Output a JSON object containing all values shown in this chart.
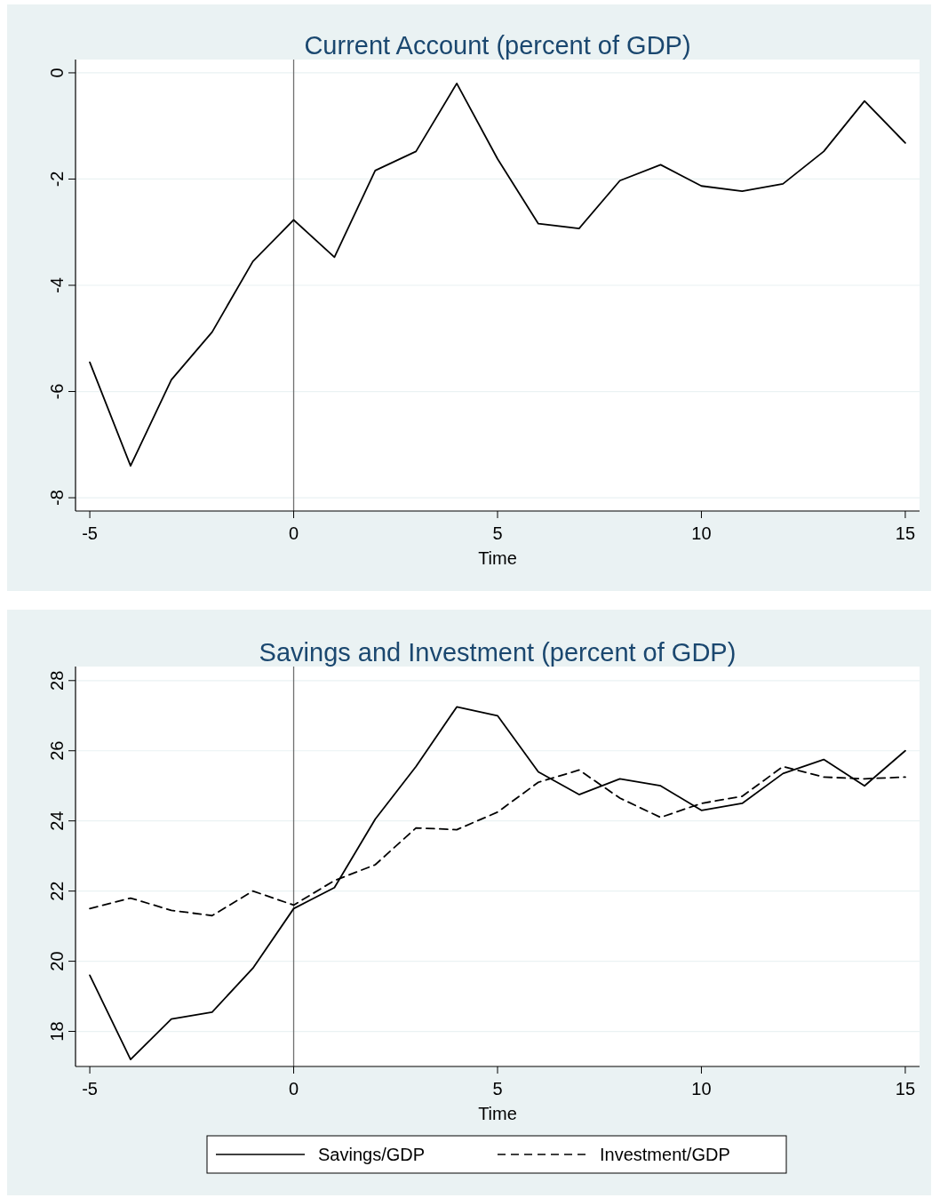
{
  "chart_data": [
    {
      "type": "line",
      "title": "Current Account (percent of GDP)",
      "xlabel": "Time",
      "x": [
        -5,
        -4,
        -3,
        -2,
        -1,
        0,
        1,
        2,
        3,
        4,
        5,
        6,
        7,
        8,
        9,
        10,
        11,
        12,
        13,
        14,
        15
      ],
      "series": [
        {
          "color": "#000000",
          "line_style": "solid",
          "values": [
            -5.45,
            -7.4,
            -5.78,
            -4.88,
            -3.55,
            -2.77,
            -3.47,
            -1.84,
            -1.48,
            -0.2,
            -1.62,
            -2.84,
            -2.93,
            -2.03,
            -1.73,
            -2.13,
            -2.23,
            -2.09,
            -1.48,
            -0.53,
            -1.32
          ]
        }
      ],
      "xlim": [
        -5.35,
        15.35
      ],
      "xticks": [
        -5,
        0,
        5,
        10,
        15
      ],
      "ylim": [
        -8.25,
        0.25
      ],
      "yticks": [
        -8,
        -6,
        -4,
        -2,
        0
      ],
      "grid": "y",
      "marker": "none",
      "ref_lines": [
        {
          "axis": "x",
          "value": 0,
          "color": "#707070"
        }
      ]
    },
    {
      "type": "line",
      "title": "Savings and Investment (percent of GDP)",
      "xlabel": "Time",
      "x": [
        -5,
        -4,
        -3,
        -2,
        -1,
        0,
        1,
        2,
        3,
        4,
        5,
        6,
        7,
        8,
        9,
        10,
        11,
        12,
        13,
        14,
        15
      ],
      "series": [
        {
          "name": "Savings/GDP",
          "color": "#000000",
          "line_style": "solid",
          "values": [
            19.6,
            17.2,
            18.35,
            18.55,
            19.8,
            21.5,
            22.1,
            24.05,
            25.55,
            27.25,
            27.0,
            25.4,
            24.75,
            25.2,
            25.0,
            24.3,
            24.5,
            25.35,
            25.75,
            25.0,
            26.0
          ]
        },
        {
          "name": "Investment/GDP",
          "color": "#000000",
          "line_style": "dashed",
          "values": [
            21.5,
            21.8,
            21.45,
            21.3,
            22.0,
            21.6,
            22.3,
            22.75,
            23.8,
            23.75,
            24.25,
            25.1,
            25.45,
            24.65,
            24.1,
            24.5,
            24.7,
            25.55,
            25.25,
            25.2,
            25.25
          ]
        }
      ],
      "xlim": [
        -5.35,
        15.35
      ],
      "xticks": [
        -5,
        0,
        5,
        10,
        15
      ],
      "ylim": [
        17.0,
        28.4
      ],
      "yticks": [
        18,
        20,
        22,
        24,
        26,
        28
      ],
      "grid": "y",
      "marker": "none",
      "legend": "bottom",
      "ref_lines": [
        {
          "axis": "x",
          "value": 0,
          "color": "#707070"
        }
      ]
    }
  ]
}
